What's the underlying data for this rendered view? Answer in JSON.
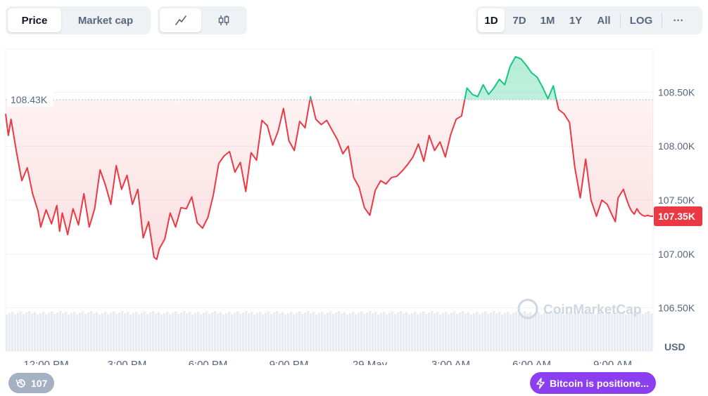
{
  "toolbar": {
    "metric_tabs": [
      "Price",
      "Market cap"
    ],
    "active_metric": "Price",
    "chart_types": [
      "line-chart-icon",
      "candlestick-icon"
    ],
    "active_chart_type": "line-chart-icon",
    "ranges": [
      "1D",
      "7D",
      "1M",
      "1Y",
      "All"
    ],
    "active_range": "1D",
    "scale_label": "LOG",
    "more_label": "···"
  },
  "chart": {
    "reference_label": "108.43K",
    "current_price_label": "107.35K",
    "currency_label": "USD",
    "watermark": "CoinMarketCap",
    "colors": {
      "down_line": "#ea3943",
      "up_line": "#16c784",
      "current_badge": "#ea3943",
      "grid": "#eff2f5",
      "axis_text": "#58667e"
    }
  },
  "footer": {
    "history_count": "107",
    "news_text": "Bitcoin is positione..."
  },
  "chart_data": {
    "type": "area",
    "title": "",
    "xlabel": "",
    "ylabel": "USD",
    "x_ticks": [
      "12:00 PM",
      "3:00 PM",
      "6:00 PM",
      "9:00 PM",
      "29 May",
      "3:00 AM",
      "6:00 AM",
      "9:00 AM"
    ],
    "x_tick_hours": [
      1.5,
      4.5,
      7.5,
      10.5,
      13.5,
      16.5,
      19.5,
      22.5
    ],
    "y_ticks": [
      {
        "value": 106500,
        "label": "106.50K"
      },
      {
        "value": 107000,
        "label": "107.00K"
      },
      {
        "value": 107500,
        "label": "107.50K"
      },
      {
        "value": 108000,
        "label": "108.00K"
      },
      {
        "value": 108500,
        "label": "108.50K"
      }
    ],
    "ylim": [
      106100,
      108900
    ],
    "xlim": [
      0,
      24
    ],
    "reference_value": 108430,
    "current_value": 107350,
    "grid": true,
    "legend": "none",
    "series": [
      {
        "x": [
          0.0,
          0.1,
          0.2,
          0.4,
          0.6,
          0.8,
          1.0,
          1.2,
          1.3,
          1.5,
          1.7,
          1.9,
          2.0,
          2.1,
          2.3,
          2.5,
          2.7,
          2.9,
          3.1,
          3.3,
          3.5,
          3.7,
          3.9,
          4.1,
          4.3,
          4.5,
          4.7,
          4.9,
          5.1,
          5.3,
          5.5,
          5.6,
          5.7,
          5.9,
          6.1,
          6.3,
          6.5,
          6.7,
          6.9,
          7.1,
          7.3,
          7.5,
          7.7,
          7.9,
          8.1,
          8.3,
          8.5,
          8.7,
          8.9,
          9.1,
          9.3,
          9.5,
          9.7,
          9.9,
          10.1,
          10.3,
          10.5,
          10.7,
          10.9,
          11.1,
          11.3,
          11.5,
          11.7,
          11.9,
          12.1,
          12.3,
          12.5,
          12.7,
          12.9,
          13.1,
          13.3,
          13.5,
          13.7,
          13.9,
          14.1,
          14.3,
          14.5,
          14.7,
          14.9,
          15.1,
          15.3,
          15.5,
          15.7,
          15.9,
          16.1,
          16.3,
          16.5,
          16.7,
          16.9,
          17.1,
          17.3,
          17.5,
          17.7,
          17.9,
          18.1,
          18.3,
          18.5,
          18.7,
          18.9,
          19.1,
          19.3,
          19.5,
          19.7,
          19.9,
          20.1,
          20.3,
          20.5,
          20.7,
          20.9,
          21.1,
          21.3,
          21.5,
          21.7,
          21.9,
          22.1,
          22.3,
          22.5,
          22.6,
          22.7,
          22.9,
          23.0,
          23.1,
          23.2,
          23.3,
          23.4,
          23.5,
          23.6,
          23.7,
          23.8,
          23.9,
          24.0
        ],
        "y": [
          108300,
          108100,
          108250,
          107950,
          107680,
          107800,
          107560,
          107400,
          107250,
          107410,
          107280,
          107450,
          107210,
          107380,
          107180,
          107420,
          107270,
          107560,
          107250,
          107420,
          107780,
          107640,
          107460,
          107820,
          107600,
          107730,
          107460,
          107600,
          107150,
          107300,
          106970,
          106950,
          107050,
          107140,
          107380,
          107250,
          107430,
          107420,
          107530,
          107290,
          107240,
          107340,
          107550,
          107840,
          107910,
          107950,
          107760,
          107850,
          107580,
          107940,
          107870,
          108240,
          108190,
          108010,
          108140,
          108350,
          108050,
          107960,
          108230,
          108170,
          108460,
          108250,
          108200,
          108240,
          108150,
          108060,
          107930,
          108000,
          107710,
          107620,
          107430,
          107360,
          107590,
          107680,
          107650,
          107710,
          107720,
          107770,
          107830,
          107900,
          108020,
          107860,
          108100,
          107960,
          108040,
          107900,
          108110,
          108250,
          108280,
          108540,
          108480,
          108460,
          108570,
          108480,
          108540,
          108620,
          108570,
          108740,
          108830,
          108810,
          108750,
          108680,
          108640,
          108550,
          108440,
          108560,
          108340,
          108300,
          108220,
          107800,
          107520,
          107880,
          107500,
          107350,
          107500,
          107460,
          107350,
          107300,
          107520,
          107600,
          107520,
          107450,
          107400,
          107370,
          107420,
          107380,
          107360,
          107350,
          107360,
          107350,
          107350
        ]
      }
    ]
  }
}
